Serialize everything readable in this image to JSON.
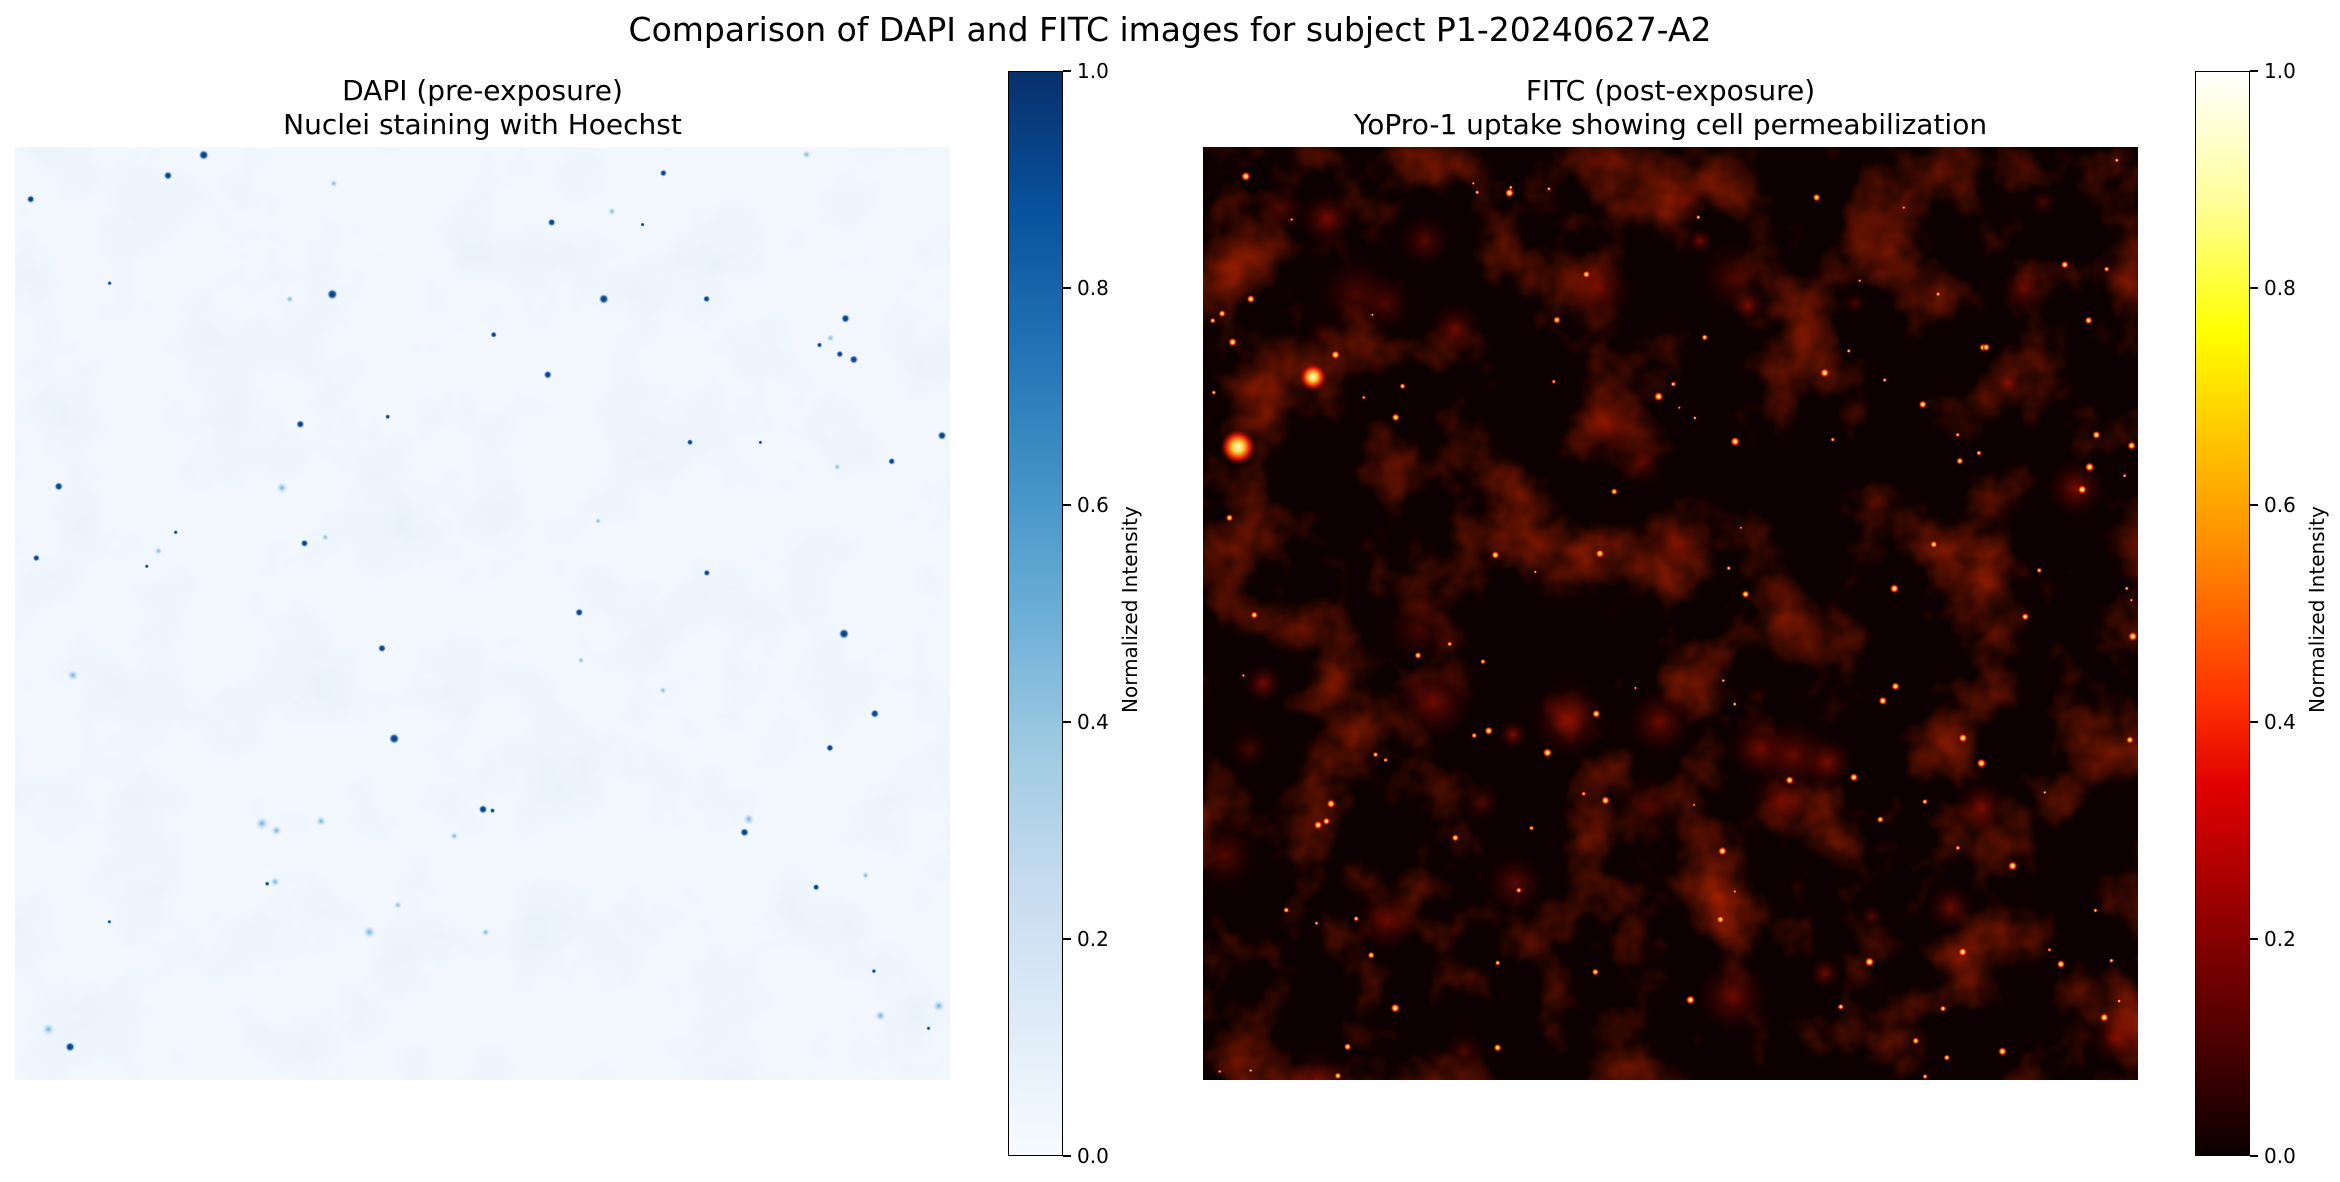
{
  "figure": {
    "suptitle": "Comparison of DAPI and FITC images for subject P1-20240627-A2"
  },
  "panels": [
    {
      "title_line1": "DAPI (pre-exposure)",
      "title_line2": "Nuclei staining with Hoechst",
      "colormap": "Blues",
      "colorbar": {
        "label": "Normalized Intensity",
        "ticks": [
          "1.0",
          "0.8",
          "0.6",
          "0.4",
          "0.2",
          "0.0"
        ],
        "range": [
          0.0,
          1.0
        ]
      }
    },
    {
      "title_line1": "FITC (post-exposure)",
      "title_line2": "YoPro-1 uptake showing cell permeabilization",
      "colormap": "hot",
      "colorbar": {
        "label": "Normalized Intensity",
        "ticks": [
          "1.0",
          "0.8",
          "0.6",
          "0.4",
          "0.2",
          "0.0"
        ],
        "range": [
          0.0,
          1.0
        ]
      }
    }
  ]
}
